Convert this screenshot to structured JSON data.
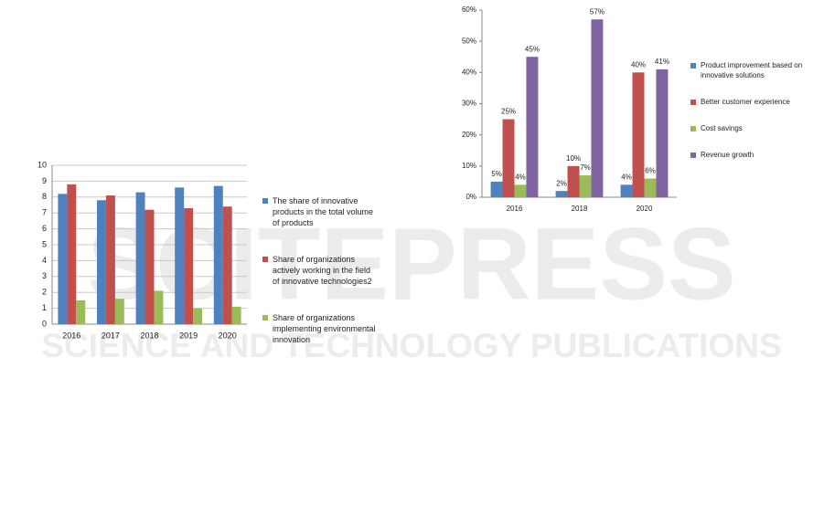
{
  "watermark": {
    "title": "SCITEPRESS",
    "subtitle": "SCIENCE AND TECHNOLOGY PUBLICATIONS"
  },
  "chart_data": [
    {
      "type": "bar",
      "categories": [
        "2016",
        "2017",
        "2018",
        "2019",
        "2020"
      ],
      "series": [
        {
          "name": "The share of innovative products in the total volume of products",
          "color": "#4f81bd",
          "values": [
            8.2,
            7.8,
            8.3,
            8.6,
            8.7
          ]
        },
        {
          "name": "Share of organizations actively working in the field of innovative technologies2",
          "color": "#c0504d",
          "values": [
            8.8,
            8.1,
            7.2,
            7.3,
            7.4
          ]
        },
        {
          "name": "Share of organizations implementing environmental innovation",
          "color": "#9bbb59",
          "values": [
            1.5,
            1.6,
            2.1,
            1.0,
            1.1
          ]
        }
      ],
      "ylim": [
        0,
        10
      ],
      "yticks": [
        0,
        1,
        2,
        3,
        4,
        5,
        6,
        7,
        8,
        9,
        10
      ],
      "grid": true
    },
    {
      "type": "bar",
      "categories": [
        "2016",
        "2018",
        "2020"
      ],
      "series": [
        {
          "name": "Product improvement based on innovative solutions",
          "color": "#4f81bd",
          "values": [
            5,
            2,
            4
          ],
          "value_labels": [
            "5%",
            "2%",
            "4%"
          ]
        },
        {
          "name": "Better customer experience",
          "color": "#c0504d",
          "values": [
            25,
            10,
            40
          ],
          "value_labels": [
            "25%",
            "10%",
            "40%"
          ]
        },
        {
          "name": "Cost savings",
          "color": "#9bbb59",
          "values": [
            4,
            7,
            6
          ],
          "value_labels": [
            "4%",
            "7%",
            "6%"
          ]
        },
        {
          "name": "Revenue growth",
          "color": "#8064a2",
          "values": [
            45,
            57,
            41
          ],
          "value_labels": [
            "45%",
            "57%",
            "41%"
          ]
        }
      ],
      "ylim": [
        0,
        60
      ],
      "yticks": [
        {
          "value": 0,
          "label": "0%"
        },
        {
          "value": 10,
          "label": "10%"
        },
        {
          "value": 20,
          "label": "20%"
        },
        {
          "value": 30,
          "label": "30%"
        },
        {
          "value": 40,
          "label": "40%"
        },
        {
          "value": 50,
          "label": "50%"
        },
        {
          "value": 60,
          "label": "60%"
        }
      ],
      "grid": false
    }
  ]
}
